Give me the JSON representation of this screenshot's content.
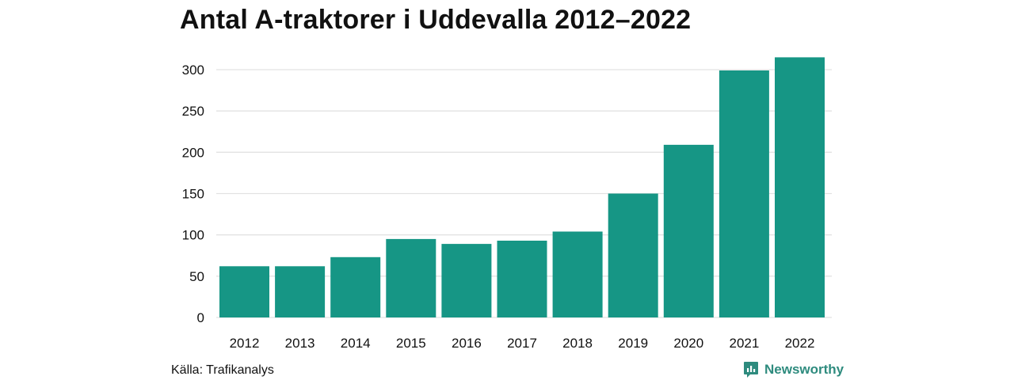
{
  "title": "Antal A-traktorer i Uddevalla 2012–2022",
  "source": "Källa: Trafikanalys",
  "brand": "Newsworthy",
  "colors": {
    "bar": "#169685",
    "grid": "#e2e2e2",
    "text": "#111111",
    "brand": "#2e8b7e"
  },
  "chart_data": {
    "type": "bar",
    "title": "Antal A-traktorer i Uddevalla 2012–2022",
    "xlabel": "",
    "ylabel": "",
    "categories": [
      "2012",
      "2013",
      "2014",
      "2015",
      "2016",
      "2017",
      "2018",
      "2019",
      "2020",
      "2021",
      "2022"
    ],
    "values": [
      62,
      62,
      73,
      95,
      89,
      93,
      104,
      150,
      209,
      299,
      315
    ],
    "ylim": [
      0,
      325
    ],
    "yticks": [
      0,
      50,
      100,
      150,
      200,
      250,
      300
    ],
    "grid": true,
    "legend": "none"
  }
}
